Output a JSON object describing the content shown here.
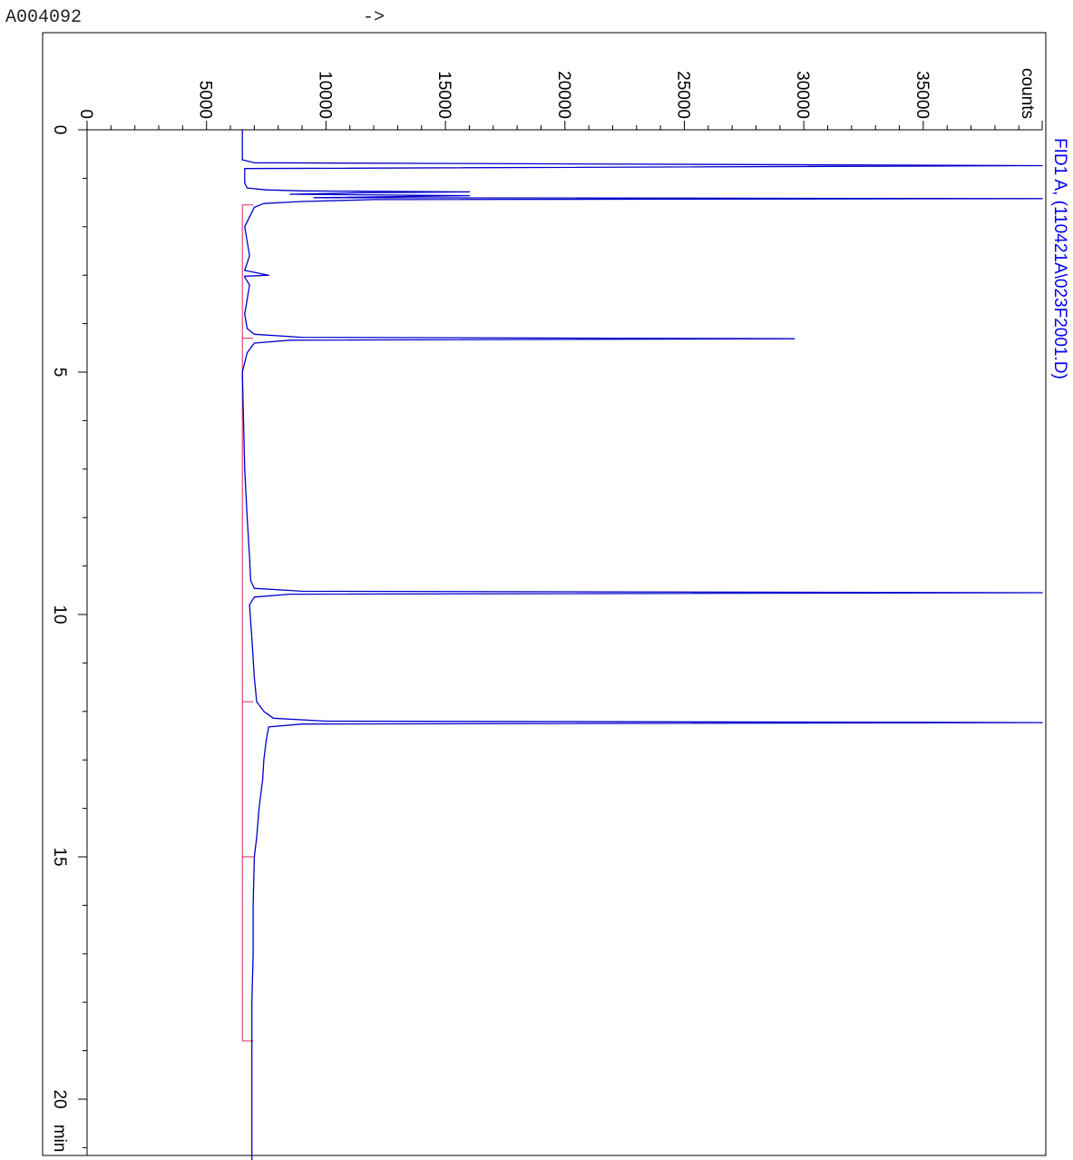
{
  "header": {
    "sample_id": "A004092",
    "arrow": "->"
  },
  "colors": {
    "trace": "#0000cc",
    "baseline": "#dd2266",
    "signal_label": "#0000ee",
    "axis": "#000000"
  },
  "chart_data": {
    "type": "line",
    "orientation": "rotated-90-clockwise",
    "title": "",
    "signal_label": "FID1 A, (110421A\\023F2001.D)",
    "xlabel": "min",
    "ylabel": "counts",
    "x_ticks": [
      "0",
      "5",
      "10",
      "15",
      "20"
    ],
    "y_ticks": [
      "0",
      "5000",
      "10000",
      "15000",
      "20000",
      "25000",
      "30000",
      "35000"
    ],
    "xlim": [
      0,
      21.4
    ],
    "ylim": [
      0,
      40000
    ],
    "grid": false,
    "series": [
      {
        "x": [
          0.0,
          0.3,
          0.62,
          0.68,
          0.74,
          0.8,
          1.1,
          1.2,
          1.24,
          1.26,
          1.28,
          1.3,
          1.33,
          1.36,
          1.4,
          1.42,
          1.44,
          1.48,
          1.52,
          1.6,
          1.8,
          2.0,
          2.3,
          2.6,
          2.9,
          3.0,
          3.02,
          3.04,
          3.2,
          3.5,
          3.8,
          4.1,
          4.22,
          4.28,
          4.31,
          4.34,
          4.4,
          4.6,
          5.0,
          6.0,
          7.0,
          8.0,
          8.8,
          9.3,
          9.46,
          9.52,
          9.55,
          9.58,
          9.64,
          9.8,
          10.5,
          11.3,
          11.8,
          12.0,
          12.14,
          12.2,
          12.23,
          12.26,
          12.32,
          12.6,
          13.0,
          13.4,
          13.6,
          14.0,
          14.6,
          15.0,
          16.0,
          17.0,
          18.0,
          19.0,
          20.0,
          21.4
        ],
        "y": [
          6500,
          6500,
          6500,
          7000,
          40000,
          6600,
          6600,
          6700,
          7500,
          9000,
          16000,
          11500,
          8500,
          16000,
          9500,
          40000,
          12000,
          9000,
          7400,
          7000,
          6800,
          6600,
          6700,
          6800,
          6600,
          7600,
          6600,
          6600,
          6800,
          6700,
          6600,
          6700,
          7000,
          9000,
          29600,
          8500,
          7000,
          6700,
          6500,
          6550,
          6600,
          6700,
          6800,
          6850,
          7000,
          9000,
          40000,
          8500,
          7000,
          6800,
          6900,
          7000,
          7100,
          7400,
          7800,
          10000,
          40000,
          9000,
          7600,
          7500,
          7400,
          7350,
          7300,
          7200,
          7100,
          7000,
          6950,
          6950,
          6900,
          6900,
          6900,
          6900
        ]
      }
    ],
    "baseline_events": [
      {
        "x": 1.55,
        "y": 6500
      },
      {
        "x": 4.3,
        "y": 6500
      },
      {
        "x": 11.8,
        "y": 6600
      },
      {
        "x": 15.0,
        "y": 6650
      },
      {
        "x": 18.8,
        "y": 6700
      }
    ]
  }
}
